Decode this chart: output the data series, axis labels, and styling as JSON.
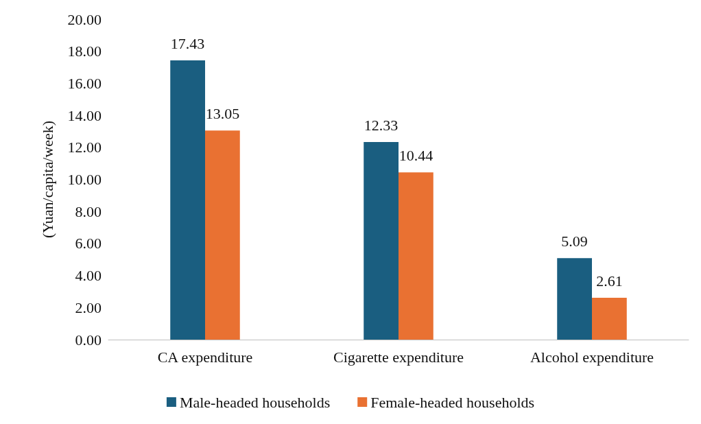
{
  "chart_data": {
    "type": "bar",
    "ylabel": "(Yuan/capita/week)",
    "categories": [
      "CA expenditure",
      "Cigarette expenditure",
      "Alcohol expenditure"
    ],
    "series": [
      {
        "name": "Male-headed households",
        "color": "#1a5e80",
        "values": [
          17.43,
          12.33,
          5.09
        ]
      },
      {
        "name": "Female-headed households",
        "color": "#e97132",
        "values": [
          13.05,
          10.44,
          2.61
        ]
      }
    ],
    "ylim": [
      0,
      20
    ],
    "yticks": [
      {
        "value": 0,
        "label": "0.00"
      },
      {
        "value": 2,
        "label": "2.00"
      },
      {
        "value": 4,
        "label": "4.00"
      },
      {
        "value": 6,
        "label": "6.00"
      },
      {
        "value": 8,
        "label": "8.00"
      },
      {
        "value": 10,
        "label": "10.00"
      },
      {
        "value": 12,
        "label": "12.00"
      },
      {
        "value": 14,
        "label": "14.00"
      },
      {
        "value": 16,
        "label": "16.00"
      },
      {
        "value": 18,
        "label": "18.00"
      },
      {
        "value": 20,
        "label": "20.00"
      }
    ],
    "data_labels": true,
    "grid": false,
    "legend": "bottom"
  }
}
